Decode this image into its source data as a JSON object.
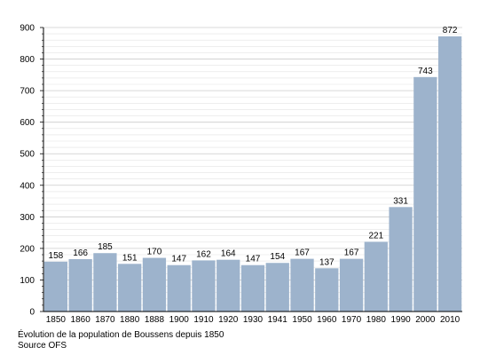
{
  "chart_data": {
    "type": "bar",
    "categories": [
      "1850",
      "1860",
      "1870",
      "1880",
      "1888",
      "1900",
      "1910",
      "1920",
      "1930",
      "1941",
      "1950",
      "1960",
      "1970",
      "1980",
      "1990",
      "2000",
      "2010"
    ],
    "values": [
      158,
      166,
      185,
      151,
      170,
      147,
      162,
      164,
      147,
      154,
      167,
      137,
      167,
      221,
      331,
      743,
      872
    ],
    "ylim": [
      0,
      900
    ],
    "yticks": [
      0,
      100,
      200,
      300,
      400,
      500,
      600,
      700,
      800,
      900
    ],
    "grid": true,
    "legend": "none",
    "bar_color": "#9db3cc",
    "grid_color": "#cccccc"
  },
  "caption": {
    "line1": "Évolution de la population de Boussens depuis 1850",
    "line2": "Source OFS"
  }
}
